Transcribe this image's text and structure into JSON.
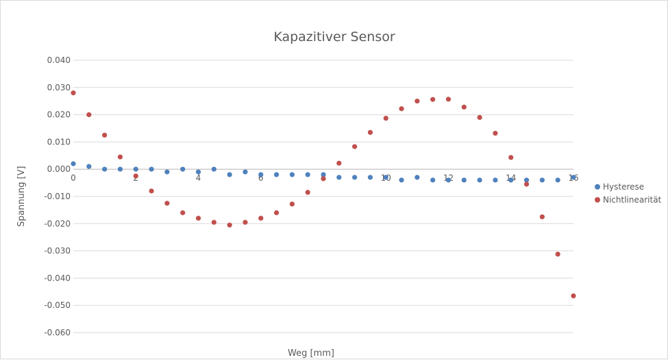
{
  "chart_data": {
    "type": "scatter",
    "title": "Kapazitiver Sensor",
    "xlabel": "Weg [mm]",
    "ylabel": "Spannung [V]",
    "xlim": [
      0,
      16
    ],
    "ylim": [
      -0.06,
      0.04
    ],
    "x_ticks": [
      "0",
      "2",
      "4",
      "6",
      "8",
      "10",
      "12",
      "14",
      "16"
    ],
    "y_ticks": [
      "0.040",
      "0.030",
      "0.020",
      "0.010",
      "0.000",
      "-0.010",
      "-0.020",
      "-0.030",
      "-0.040",
      "-0.050",
      "-0.060"
    ],
    "grid": true,
    "legend_position": "right",
    "series": [
      {
        "name": "Hysterese",
        "color": "#4f81bd",
        "x": [
          0,
          0.5,
          1,
          1.5,
          2,
          2.5,
          3,
          3.5,
          4,
          4.5,
          5,
          5.5,
          6,
          6.5,
          7,
          7.5,
          8,
          8.5,
          9,
          9.5,
          10,
          10.5,
          11,
          11.5,
          12,
          12.5,
          13,
          13.5,
          14,
          14.5,
          15,
          15.5,
          16
        ],
        "y": [
          0.002,
          0.001,
          0.0,
          0.0,
          0.0,
          0.0,
          -0.001,
          0.0,
          -0.001,
          0.0,
          -0.002,
          -0.001,
          -0.002,
          -0.002,
          -0.002,
          -0.002,
          -0.002,
          -0.003,
          -0.003,
          -0.003,
          -0.003,
          -0.004,
          -0.003,
          -0.004,
          -0.004,
          -0.004,
          -0.004,
          -0.004,
          -0.004,
          -0.004,
          -0.004,
          -0.004,
          -0.003
        ]
      },
      {
        "name": "Nichtlinearität",
        "color": "#c0504d",
        "x": [
          0,
          0.5,
          1,
          1.5,
          2,
          2.5,
          3,
          3.5,
          4,
          4.5,
          5,
          5.5,
          6,
          6.5,
          7,
          7.5,
          8,
          8.5,
          9,
          9.5,
          10,
          10.5,
          11,
          11.5,
          12,
          12.5,
          13,
          13.5,
          14,
          14.5,
          15,
          15.5,
          16
        ],
        "y": [
          0.028,
          0.02,
          0.0125,
          0.0045,
          -0.0025,
          -0.008,
          -0.0125,
          -0.016,
          -0.018,
          -0.0195,
          -0.0205,
          -0.0195,
          -0.018,
          -0.016,
          -0.0128,
          -0.0085,
          -0.0035,
          0.0022,
          0.0083,
          0.0135,
          0.0187,
          0.0222,
          0.025,
          0.0256,
          0.0257,
          0.0228,
          0.019,
          0.0132,
          0.0043,
          -0.0055,
          -0.0175,
          -0.0312,
          -0.0465
        ]
      }
    ]
  }
}
